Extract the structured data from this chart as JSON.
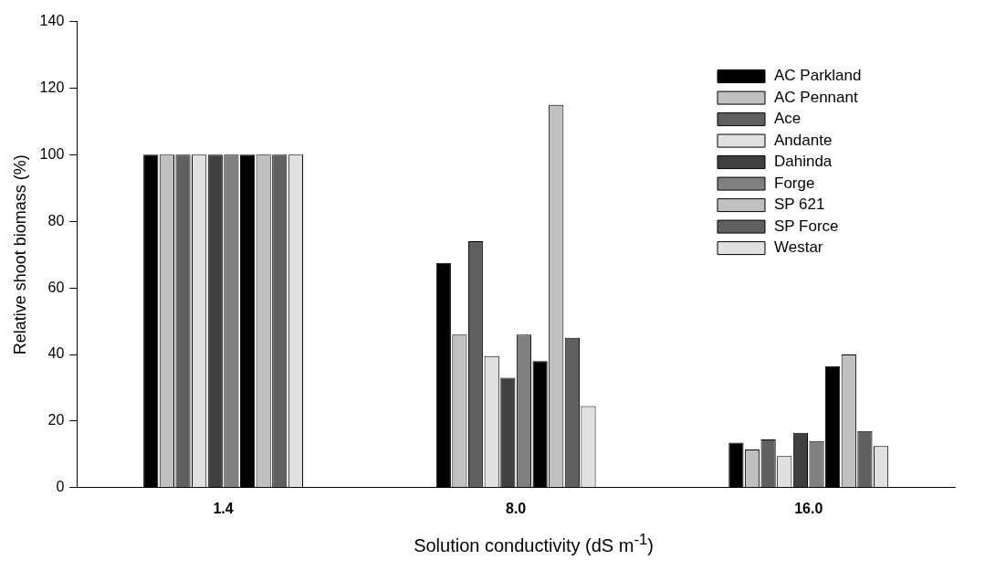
{
  "chart_data": {
    "type": "bar",
    "xlabel": "Solution conductivity (dS m$^{-1}$)",
    "ylabel": "Relative shoot biomass (%)",
    "categories": [
      "1.4",
      "8.0",
      "16.0"
    ],
    "ylim": [
      0,
      140
    ],
    "yticks": [
      0,
      20,
      40,
      60,
      80,
      100,
      120,
      140
    ],
    "grid": false,
    "legend": "top right",
    "series": [
      {
        "name": "AC Parkland",
        "color": "#000000",
        "values": [
          100,
          67.5,
          13.5
        ]
      },
      {
        "name": "AC Pennant",
        "color": "#c0c0c0",
        "values": [
          100,
          46,
          11.5
        ]
      },
      {
        "name": "Ace",
        "color": "#606060",
        "values": [
          100,
          74,
          14.5
        ]
      },
      {
        "name": "Andante",
        "color": "#e0e0e0",
        "values": [
          100,
          39.5,
          9.5
        ]
      },
      {
        "name": "Dahinda",
        "color": "#404040",
        "values": [
          100,
          33,
          16.5
        ]
      },
      {
        "name": "Forge",
        "color": "#808080",
        "values": [
          100,
          46,
          14
        ]
      },
      {
        "color": "#000000",
        "values": [
          100,
          38,
          36.5
        ]
      },
      {
        "name": "SP 621",
        "color": "#c0c0c0",
        "values": [
          100,
          115,
          40
        ]
      },
      {
        "name": "SP Force",
        "color": "#606060",
        "values": [
          100,
          45,
          17
        ]
      },
      {
        "name": "Westar",
        "color": "#e0e0e0",
        "values": [
          100,
          24.5,
          12.5
        ]
      }
    ]
  }
}
